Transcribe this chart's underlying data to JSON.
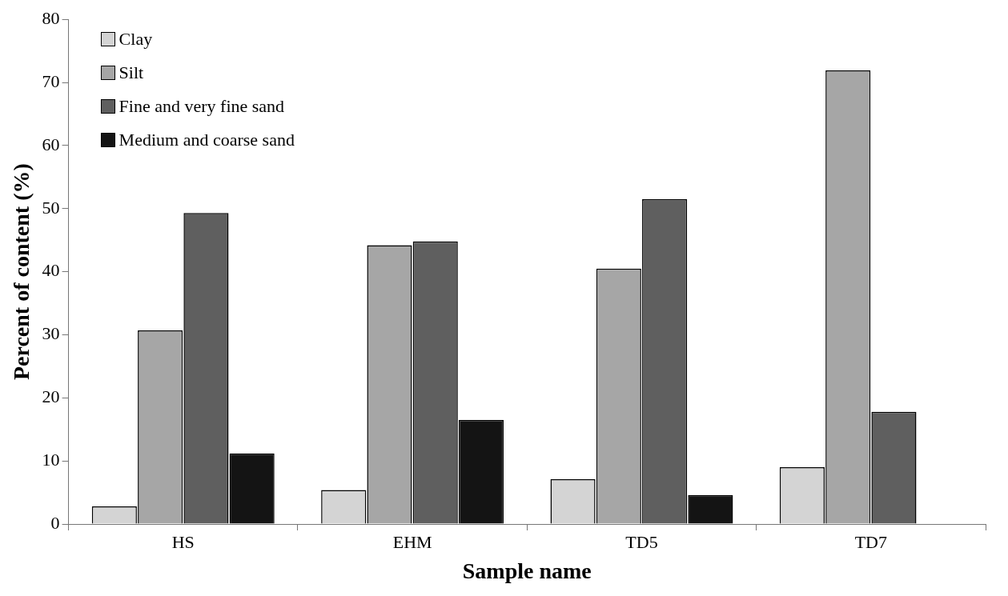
{
  "chart_data": {
    "type": "bar",
    "xlabel": "Sample name",
    "ylabel": "Percent of content (%)",
    "categories": [
      "HS",
      "EHM",
      "TD5",
      "TD7"
    ],
    "series": [
      {
        "name": "Clay",
        "color": "#d4d4d4",
        "values": [
          2.8,
          5.4,
          7.1,
          9.0
        ]
      },
      {
        "name": "Silt",
        "color": "#a6a6a6",
        "values": [
          30.7,
          44.2,
          40.5,
          71.9
        ]
      },
      {
        "name": "Fine and very fine sand",
        "color": "#5f5f5f",
        "values": [
          49.3,
          44.8,
          51.5,
          17.8
        ]
      },
      {
        "name": "Medium and coarse sand",
        "color": "#141414",
        "values": [
          11.2,
          16.5,
          4.6,
          null
        ]
      }
    ],
    "ylim": [
      0,
      80
    ],
    "yticks": [
      0,
      10,
      20,
      30,
      40,
      50,
      60,
      70,
      80
    ],
    "grid": false,
    "legend": "top left"
  }
}
